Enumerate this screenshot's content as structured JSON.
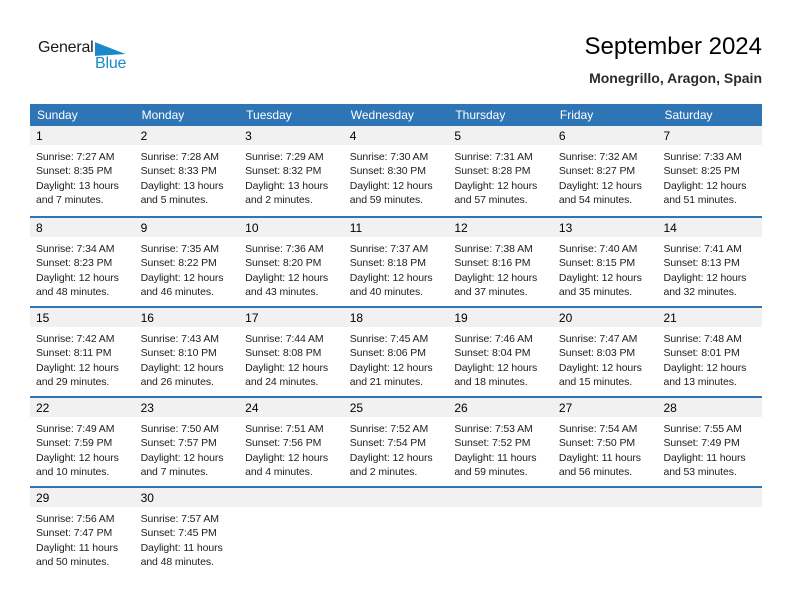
{
  "logo": {
    "part1": "General",
    "part2": "Blue",
    "triangle_icon": "blue-right-pennant"
  },
  "header": {
    "title": "September 2024",
    "subtitle": "Monegrillo, Aragon, Spain"
  },
  "colors": {
    "header_bar": "#2E75B6",
    "row_divider": "#2E75B6",
    "day_band": "#F1F1F1",
    "logo_blue": "#1989CB",
    "detail_text": "#212121"
  },
  "weekday_headers": [
    "Sunday",
    "Monday",
    "Tuesday",
    "Wednesday",
    "Thursday",
    "Friday",
    "Saturday"
  ],
  "calendar": {
    "weeks": [
      [
        {
          "day": "1",
          "sunrise": "Sunrise: 7:27 AM",
          "sunset": "Sunset: 8:35 PM",
          "daylight": [
            "Daylight: 13 hours",
            "and 7 minutes."
          ]
        },
        {
          "day": "2",
          "sunrise": "Sunrise: 7:28 AM",
          "sunset": "Sunset: 8:33 PM",
          "daylight": [
            "Daylight: 13 hours",
            "and 5 minutes."
          ]
        },
        {
          "day": "3",
          "sunrise": "Sunrise: 7:29 AM",
          "sunset": "Sunset: 8:32 PM",
          "daylight": [
            "Daylight: 13 hours",
            "and 2 minutes."
          ]
        },
        {
          "day": "4",
          "sunrise": "Sunrise: 7:30 AM",
          "sunset": "Sunset: 8:30 PM",
          "daylight": [
            "Daylight: 12 hours",
            "and 59 minutes."
          ]
        },
        {
          "day": "5",
          "sunrise": "Sunrise: 7:31 AM",
          "sunset": "Sunset: 8:28 PM",
          "daylight": [
            "Daylight: 12 hours",
            "and 57 minutes."
          ]
        },
        {
          "day": "6",
          "sunrise": "Sunrise: 7:32 AM",
          "sunset": "Sunset: 8:27 PM",
          "daylight": [
            "Daylight: 12 hours",
            "and 54 minutes."
          ]
        },
        {
          "day": "7",
          "sunrise": "Sunrise: 7:33 AM",
          "sunset": "Sunset: 8:25 PM",
          "daylight": [
            "Daylight: 12 hours",
            "and 51 minutes."
          ]
        }
      ],
      [
        {
          "day": "8",
          "sunrise": "Sunrise: 7:34 AM",
          "sunset": "Sunset: 8:23 PM",
          "daylight": [
            "Daylight: 12 hours",
            "and 48 minutes."
          ]
        },
        {
          "day": "9",
          "sunrise": "Sunrise: 7:35 AM",
          "sunset": "Sunset: 8:22 PM",
          "daylight": [
            "Daylight: 12 hours",
            "and 46 minutes."
          ]
        },
        {
          "day": "10",
          "sunrise": "Sunrise: 7:36 AM",
          "sunset": "Sunset: 8:20 PM",
          "daylight": [
            "Daylight: 12 hours",
            "and 43 minutes."
          ]
        },
        {
          "day": "11",
          "sunrise": "Sunrise: 7:37 AM",
          "sunset": "Sunset: 8:18 PM",
          "daylight": [
            "Daylight: 12 hours",
            "and 40 minutes."
          ]
        },
        {
          "day": "12",
          "sunrise": "Sunrise: 7:38 AM",
          "sunset": "Sunset: 8:16 PM",
          "daylight": [
            "Daylight: 12 hours",
            "and 37 minutes."
          ]
        },
        {
          "day": "13",
          "sunrise": "Sunrise: 7:40 AM",
          "sunset": "Sunset: 8:15 PM",
          "daylight": [
            "Daylight: 12 hours",
            "and 35 minutes."
          ]
        },
        {
          "day": "14",
          "sunrise": "Sunrise: 7:41 AM",
          "sunset": "Sunset: 8:13 PM",
          "daylight": [
            "Daylight: 12 hours",
            "and 32 minutes."
          ]
        }
      ],
      [
        {
          "day": "15",
          "sunrise": "Sunrise: 7:42 AM",
          "sunset": "Sunset: 8:11 PM",
          "daylight": [
            "Daylight: 12 hours",
            "and 29 minutes."
          ]
        },
        {
          "day": "16",
          "sunrise": "Sunrise: 7:43 AM",
          "sunset": "Sunset: 8:10 PM",
          "daylight": [
            "Daylight: 12 hours",
            "and 26 minutes."
          ]
        },
        {
          "day": "17",
          "sunrise": "Sunrise: 7:44 AM",
          "sunset": "Sunset: 8:08 PM",
          "daylight": [
            "Daylight: 12 hours",
            "and 24 minutes."
          ]
        },
        {
          "day": "18",
          "sunrise": "Sunrise: 7:45 AM",
          "sunset": "Sunset: 8:06 PM",
          "daylight": [
            "Daylight: 12 hours",
            "and 21 minutes."
          ]
        },
        {
          "day": "19",
          "sunrise": "Sunrise: 7:46 AM",
          "sunset": "Sunset: 8:04 PM",
          "daylight": [
            "Daylight: 12 hours",
            "and 18 minutes."
          ]
        },
        {
          "day": "20",
          "sunrise": "Sunrise: 7:47 AM",
          "sunset": "Sunset: 8:03 PM",
          "daylight": [
            "Daylight: 12 hours",
            "and 15 minutes."
          ]
        },
        {
          "day": "21",
          "sunrise": "Sunrise: 7:48 AM",
          "sunset": "Sunset: 8:01 PM",
          "daylight": [
            "Daylight: 12 hours",
            "and 13 minutes."
          ]
        }
      ],
      [
        {
          "day": "22",
          "sunrise": "Sunrise: 7:49 AM",
          "sunset": "Sunset: 7:59 PM",
          "daylight": [
            "Daylight: 12 hours",
            "and 10 minutes."
          ]
        },
        {
          "day": "23",
          "sunrise": "Sunrise: 7:50 AM",
          "sunset": "Sunset: 7:57 PM",
          "daylight": [
            "Daylight: 12 hours",
            "and 7 minutes."
          ]
        },
        {
          "day": "24",
          "sunrise": "Sunrise: 7:51 AM",
          "sunset": "Sunset: 7:56 PM",
          "daylight": [
            "Daylight: 12 hours",
            "and 4 minutes."
          ]
        },
        {
          "day": "25",
          "sunrise": "Sunrise: 7:52 AM",
          "sunset": "Sunset: 7:54 PM",
          "daylight": [
            "Daylight: 12 hours",
            "and 2 minutes."
          ]
        },
        {
          "day": "26",
          "sunrise": "Sunrise: 7:53 AM",
          "sunset": "Sunset: 7:52 PM",
          "daylight": [
            "Daylight: 11 hours",
            "and 59 minutes."
          ]
        },
        {
          "day": "27",
          "sunrise": "Sunrise: 7:54 AM",
          "sunset": "Sunset: 7:50 PM",
          "daylight": [
            "Daylight: 11 hours",
            "and 56 minutes."
          ]
        },
        {
          "day": "28",
          "sunrise": "Sunrise: 7:55 AM",
          "sunset": "Sunset: 7:49 PM",
          "daylight": [
            "Daylight: 11 hours",
            "and 53 minutes."
          ]
        }
      ],
      [
        {
          "day": "29",
          "sunrise": "Sunrise: 7:56 AM",
          "sunset": "Sunset: 7:47 PM",
          "daylight": [
            "Daylight: 11 hours",
            "and 50 minutes."
          ]
        },
        {
          "day": "30",
          "sunrise": "Sunrise: 7:57 AM",
          "sunset": "Sunset: 7:45 PM",
          "daylight": [
            "Daylight: 11 hours",
            "and 48 minutes."
          ]
        },
        null,
        null,
        null,
        null,
        null
      ]
    ]
  }
}
